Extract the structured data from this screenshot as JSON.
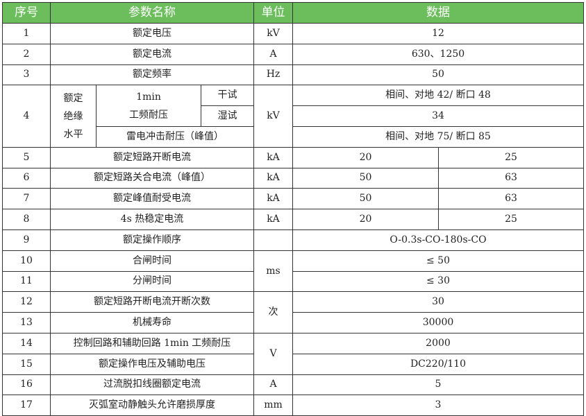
{
  "header": {
    "seq": "序号",
    "name": "参数名称",
    "unit": "单位",
    "data": "数据"
  },
  "colors": {
    "header_bg": "#6cbd5c",
    "header_text": "#ffffff",
    "border": "#333333"
  },
  "rows": [
    {
      "seq": "1",
      "name": "额定电压",
      "unit": "kV",
      "data": "12"
    },
    {
      "seq": "2",
      "name": "额定电流",
      "unit": "A",
      "data": "630、1250"
    },
    {
      "seq": "3",
      "name": "额定频率",
      "unit": "Hz",
      "data": "50"
    },
    {
      "seq": "4",
      "group": "额定\n绝缘\n水平",
      "group_lines": [
        "额定",
        "绝缘",
        "水平"
      ],
      "unit": "kV",
      "power_freq_lines": [
        "1min",
        "工频耐压"
      ],
      "dry": "干试",
      "dry_data": "相间、对地 42/ 断口 48",
      "wet": "湿试",
      "wet_data": "34",
      "lightning": "雷电冲击耐压（峰值）",
      "lightning_data": "相间、对地 75/ 断口 85"
    },
    {
      "seq": "5",
      "name": "额定短路开断电流",
      "unit": "kA",
      "v1": "20",
      "v2": "25"
    },
    {
      "seq": "6",
      "name": "额定短路关合电流（峰值）",
      "unit": "kA",
      "v1": "50",
      "v2": "63"
    },
    {
      "seq": "7",
      "name": "额定峰值耐受电流",
      "unit": "kA",
      "v1": "50",
      "v2": "63"
    },
    {
      "seq": "8",
      "name": "4s 热稳定电流",
      "unit": "kA",
      "v1": "20",
      "v2": "25"
    },
    {
      "seq": "9",
      "name": "额定操作顺序",
      "unit": "",
      "data": "O-0.3s-CO-180s-CO"
    },
    {
      "seq": "10",
      "name": "合闸时间",
      "unit": "ms",
      "data": "≤ 50"
    },
    {
      "seq": "11",
      "name": "分闸时间",
      "data": "≤ 30"
    },
    {
      "seq": "12",
      "name": "额定短路开断电流开断次数",
      "unit": "次",
      "data": "30"
    },
    {
      "seq": "13",
      "name": "机械寿命",
      "data": "30000"
    },
    {
      "seq": "14",
      "name": "控制回路和辅助回路 1min 工频耐压",
      "unit": "V",
      "data": "2000"
    },
    {
      "seq": "15",
      "name": "额定操作电压及辅助电压",
      "data": "DC220/110"
    },
    {
      "seq": "16",
      "name": "过流脱扣线圈额定电流",
      "unit": "A",
      "data": "5"
    },
    {
      "seq": "17",
      "name": "灭弧室动静触头允许磨损厚度",
      "unit": "mm",
      "data": "3"
    }
  ]
}
